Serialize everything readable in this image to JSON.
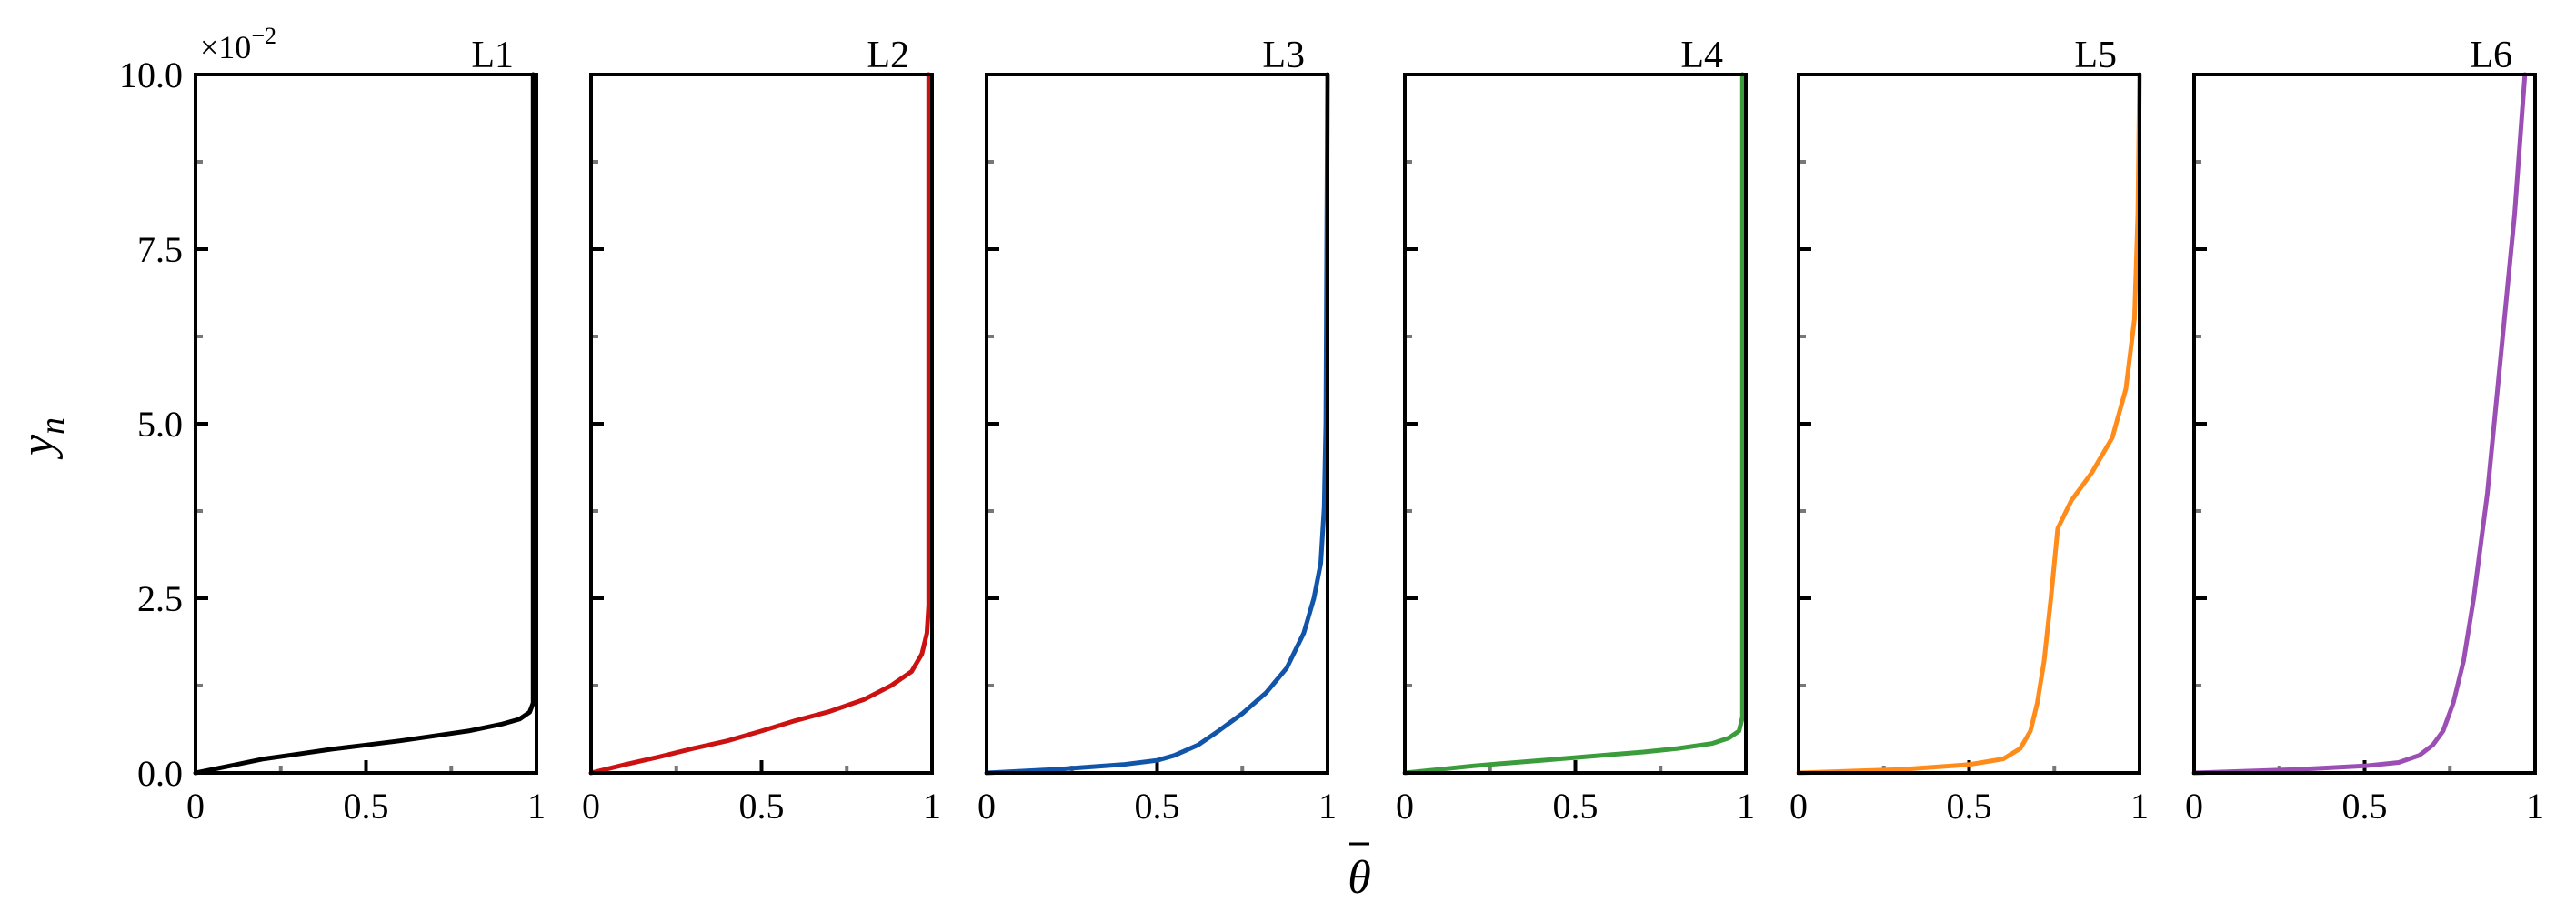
{
  "figure": {
    "ylabel": "y",
    "ylabel_sub": "n",
    "xlabel": "θ",
    "y_exponent_base": "×10",
    "y_exponent_power": "−2"
  },
  "chart_data": [
    {
      "type": "line",
      "title": "L1",
      "color": "#000000",
      "xlim": [
        0,
        1
      ],
      "ylim": [
        0,
        10.0
      ],
      "xticks": [
        0,
        0.5,
        1
      ],
      "xtick_labels": [
        "0",
        "0.5",
        "1"
      ],
      "yticks": [
        0,
        2.5,
        5.0,
        7.5,
        10.0
      ],
      "ytick_labels": [
        "0.0",
        "2.5",
        "5.0",
        "7.5",
        "10.0"
      ],
      "series": [
        {
          "x": [
            0.0,
            0.1,
            0.2,
            0.3,
            0.4,
            0.5,
            0.6,
            0.7,
            0.8,
            0.9,
            0.95,
            0.98,
            0.99,
            0.99,
            0.99
          ],
          "y": [
            0.0,
            0.1,
            0.2,
            0.27,
            0.34,
            0.4,
            0.46,
            0.53,
            0.6,
            0.7,
            0.77,
            0.87,
            1.0,
            2.0,
            10.0
          ]
        }
      ]
    },
    {
      "type": "line",
      "title": "L2",
      "color": "#cc1111",
      "xlim": [
        0,
        1
      ],
      "ylim": [
        0,
        10.0
      ],
      "xticks": [
        0,
        0.5,
        1
      ],
      "xtick_labels": [
        "0",
        "0.5",
        "1"
      ],
      "yticks": [
        0,
        2.5,
        5.0,
        7.5,
        10.0
      ],
      "ytick_labels": [
        "0.0",
        "2.5",
        "5.0",
        "7.5",
        "10.0"
      ],
      "series": [
        {
          "x": [
            0.0,
            0.1,
            0.2,
            0.3,
            0.4,
            0.5,
            0.6,
            0.7,
            0.8,
            0.88,
            0.94,
            0.97,
            0.985,
            0.99,
            0.99,
            0.99
          ],
          "y": [
            0.0,
            0.12,
            0.23,
            0.35,
            0.46,
            0.6,
            0.75,
            0.88,
            1.05,
            1.25,
            1.45,
            1.7,
            2.0,
            2.4,
            5.0,
            10.0
          ]
        }
      ]
    },
    {
      "type": "line",
      "title": "L3",
      "color": "#1155aa",
      "xlim": [
        0,
        1
      ],
      "ylim": [
        0,
        10.0
      ],
      "xticks": [
        0,
        0.5,
        1
      ],
      "xtick_labels": [
        "0",
        "0.5",
        "1"
      ],
      "yticks": [
        0,
        2.5,
        5.0,
        7.5,
        10.0
      ],
      "ytick_labels": [
        "0.0",
        "2.5",
        "5.0",
        "7.5",
        "10.0"
      ],
      "series": [
        {
          "x": [
            0.0,
            0.2,
            0.4,
            0.5,
            0.55,
            0.62,
            0.68,
            0.75,
            0.82,
            0.88,
            0.93,
            0.96,
            0.98,
            0.99,
            0.995,
            1.0
          ],
          "y": [
            0.0,
            0.05,
            0.12,
            0.18,
            0.25,
            0.4,
            0.6,
            0.85,
            1.15,
            1.5,
            2.0,
            2.5,
            3.0,
            3.8,
            5.0,
            10.0
          ]
        }
      ]
    },
    {
      "type": "line",
      "title": "L4",
      "color": "#3a9c3a",
      "xlim": [
        0,
        1
      ],
      "ylim": [
        0,
        10.0
      ],
      "xticks": [
        0,
        0.5,
        1
      ],
      "xtick_labels": [
        "0",
        "0.5",
        "1"
      ],
      "yticks": [
        0,
        2.5,
        5.0,
        7.5,
        10.0
      ],
      "ytick_labels": [
        "0.0",
        "2.5",
        "5.0",
        "7.5",
        "10.0"
      ],
      "series": [
        {
          "x": [
            0.0,
            0.1,
            0.2,
            0.3,
            0.4,
            0.5,
            0.6,
            0.7,
            0.8,
            0.9,
            0.95,
            0.98,
            0.99,
            0.99,
            0.99
          ],
          "y": [
            0.0,
            0.05,
            0.1,
            0.14,
            0.18,
            0.22,
            0.26,
            0.3,
            0.35,
            0.42,
            0.5,
            0.6,
            0.8,
            2.0,
            10.0
          ]
        }
      ]
    },
    {
      "type": "line",
      "title": "L5",
      "color": "#ff8c1a",
      "xlim": [
        0,
        1
      ],
      "ylim": [
        0,
        10.0
      ],
      "xticks": [
        0,
        0.5,
        1
      ],
      "xtick_labels": [
        "0",
        "0.5",
        "1"
      ],
      "yticks": [
        0,
        2.5,
        5.0,
        7.5,
        10.0
      ],
      "ytick_labels": [
        "0.0",
        "2.5",
        "5.0",
        "7.5",
        "10.0"
      ],
      "series": [
        {
          "x": [
            0.0,
            0.3,
            0.5,
            0.6,
            0.65,
            0.68,
            0.7,
            0.72,
            0.74,
            0.76,
            0.8,
            0.86,
            0.92,
            0.96,
            0.985,
            0.995,
            1.0
          ],
          "y": [
            0.0,
            0.05,
            0.12,
            0.2,
            0.35,
            0.6,
            1.0,
            1.6,
            2.5,
            3.5,
            3.9,
            4.3,
            4.8,
            5.5,
            6.5,
            8.0,
            10.0
          ]
        }
      ]
    },
    {
      "type": "line",
      "title": "L6",
      "color": "#9b4fb5",
      "xlim": [
        0,
        1
      ],
      "ylim": [
        0,
        10.0
      ],
      "xticks": [
        0,
        0.5,
        1
      ],
      "xtick_labels": [
        "0",
        "0.5",
        "1"
      ],
      "yticks": [
        0,
        2.5,
        5.0,
        7.5,
        10.0
      ],
      "ytick_labels": [
        "0.0",
        "2.5",
        "5.0",
        "7.5",
        "10.0"
      ],
      "series": [
        {
          "x": [
            0.0,
            0.3,
            0.5,
            0.6,
            0.66,
            0.7,
            0.73,
            0.76,
            0.79,
            0.82,
            0.86,
            0.9,
            0.94,
            0.97
          ],
          "y": [
            0.0,
            0.05,
            0.1,
            0.15,
            0.25,
            0.4,
            0.6,
            1.0,
            1.6,
            2.5,
            4.0,
            6.0,
            8.0,
            10.0
          ]
        }
      ]
    }
  ]
}
